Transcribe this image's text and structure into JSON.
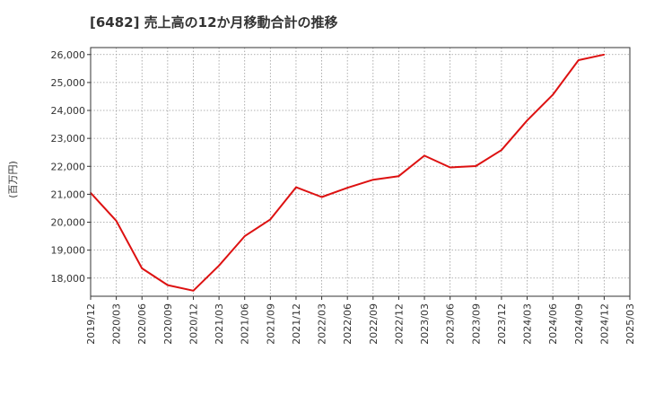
{
  "chart_data": {
    "type": "line",
    "title": "[6482]  売上高の12か月移動合計の推移",
    "ylabel": "(百万円)",
    "xlabel": "",
    "categories": [
      "2019/12",
      "2020/03",
      "2020/06",
      "2020/09",
      "2020/12",
      "2021/03",
      "2021/06",
      "2021/09",
      "2021/12",
      "2022/03",
      "2022/06",
      "2022/09",
      "2022/12",
      "2023/03",
      "2023/06",
      "2023/09",
      "2023/12",
      "2024/03",
      "2024/06",
      "2024/09",
      "2024/12",
      "2025/03"
    ],
    "series": [
      {
        "name": "売上高の12か月移動合計",
        "color": "#dd1111",
        "values": [
          21050,
          20050,
          18350,
          17750,
          17550,
          18450,
          19500,
          20100,
          21250,
          20900,
          21230,
          21520,
          21650,
          22380,
          21960,
          22010,
          22580,
          23640,
          24560,
          25800,
          26000,
          null
        ]
      }
    ],
    "ylim": [
      17350,
      26250
    ],
    "yticks": [
      18000,
      19000,
      20000,
      21000,
      22000,
      23000,
      24000,
      25000,
      26000
    ],
    "ytick_labels": [
      "18,000",
      "19,000",
      "20,000",
      "21,000",
      "22,000",
      "23,000",
      "24,000",
      "25,000",
      "26,000"
    ],
    "grid": true
  }
}
